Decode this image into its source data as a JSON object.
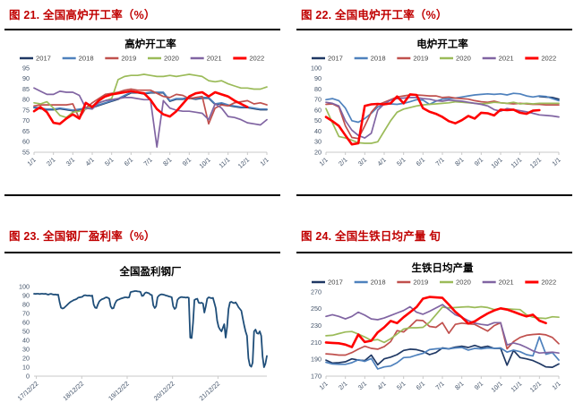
{
  "colors": {
    "caption": "#C00000",
    "rule": "#000000",
    "axis_text": "#44546A",
    "axis_line": "#C9C9C9",
    "legend_text": "#404040",
    "title_text": "#000000"
  },
  "chart_data": [
    {
      "id": "fig21",
      "caption": "图 21. 全国高炉开工率（%）",
      "title": "高炉开工率",
      "type": "line",
      "legend": true,
      "legend_position": "top",
      "grid": false,
      "ylim": [
        55,
        95
      ],
      "y_ticks": [
        55,
        60,
        65,
        70,
        75,
        80,
        85,
        90,
        95
      ],
      "x_labels": [
        "1/1",
        "2/1",
        "3/1",
        "4/1",
        "5/1",
        "6/1",
        "7/1",
        "8/1",
        "9/1",
        "10/1",
        "11/1",
        "12/1",
        "1/1"
      ],
      "series": [
        {
          "name": "2017",
          "color": "#1F3864",
          "width": 1.7,
          "values": [
            76.2,
            75.7,
            75.2,
            75.2,
            75.7,
            75.2,
            74.7,
            75.2,
            75.7,
            76.2,
            77.2,
            78.2,
            79.2,
            80.2,
            81.7,
            83.2,
            83.2,
            82.7,
            83.2,
            83.2,
            83.2,
            79.2,
            80.2,
            80.2,
            80.7,
            80.2,
            80.7,
            80.7,
            77.7,
            78.2,
            77.2,
            76.7,
            76.2,
            76.2,
            75.7,
            75.2,
            75.2
          ]
        },
        {
          "name": "2018",
          "color": "#4E81BD",
          "width": 1.7,
          "values": [
            76.5,
            76,
            75.5,
            75.5,
            76,
            75.5,
            75,
            75.5,
            76,
            76.5,
            77.5,
            78.5,
            79.5,
            80.5,
            82,
            83.5,
            83.5,
            83,
            83.5,
            83.5,
            83.5,
            79.5,
            80.5,
            80.5,
            81,
            80.5,
            81,
            81,
            78,
            78.5,
            77.5,
            77,
            76.5,
            76.5,
            76,
            75.5,
            75.5
          ]
        },
        {
          "name": "2019",
          "color": "#C0504D",
          "width": 1.7,
          "values": [
            77,
            77.5,
            77.5,
            77.5,
            77.5,
            77.5,
            78,
            71,
            76,
            78.5,
            80.5,
            82.5,
            83,
            83.5,
            84.5,
            85,
            84.5,
            84.5,
            84.5,
            83,
            81.5,
            81,
            82.5,
            82,
            80.5,
            81,
            81.5,
            68.5,
            76,
            77.5,
            77,
            78.5,
            79,
            79.5,
            78,
            78.5,
            77.5
          ]
        },
        {
          "name": "2020",
          "color": "#9BBB59",
          "width": 1.7,
          "values": [
            78.5,
            78,
            79,
            76,
            72.5,
            71.5,
            74,
            74.5,
            75.5,
            77,
            78.5,
            79.5,
            80.5,
            89.5,
            91,
            91.5,
            91.5,
            92,
            91.5,
            91,
            91,
            91.5,
            91,
            91.5,
            92,
            91.5,
            91,
            89,
            88.5,
            89,
            87.5,
            86.5,
            85.5,
            85.5,
            85,
            85,
            86
          ]
        },
        {
          "name": "2021",
          "color": "#8064A2",
          "width": 1.7,
          "values": [
            85.5,
            84,
            82.5,
            82.5,
            84,
            83.5,
            83.5,
            82,
            76,
            75.5,
            78.5,
            79.5,
            80,
            80.5,
            81,
            81,
            80.5,
            80,
            80,
            57.5,
            79.5,
            76,
            75,
            74.5,
            74.5,
            74,
            73.5,
            70.5,
            78,
            76,
            72,
            71.5,
            70.5,
            69,
            68.5,
            68,
            70.5
          ]
        },
        {
          "name": "2022",
          "color": "#FF0000",
          "width": 2.6,
          "values": [
            74.5,
            76.5,
            74,
            69,
            68.5,
            71,
            73,
            71,
            78.5,
            76.5,
            79.5,
            81.5,
            82.5,
            83,
            83.5,
            84,
            83.5,
            83,
            80,
            75.5,
            73,
            72,
            74.5,
            78,
            81.5,
            83,
            83.5,
            81.5,
            83.5,
            82.5,
            81.5,
            79.5,
            78,
            76.5,
            null,
            null,
            null
          ]
        }
      ]
    },
    {
      "id": "fig22",
      "caption": "图 22. 全国电炉开工率（%）",
      "title": "电炉开工率",
      "type": "line",
      "legend": true,
      "legend_position": "top",
      "grid": false,
      "ylim": [
        20,
        100
      ],
      "y_ticks": [
        20,
        30,
        40,
        50,
        60,
        70,
        80,
        90,
        100
      ],
      "x_labels": [
        "1/1",
        "2/1",
        "3/1",
        "4/1",
        "5/1",
        "6/1",
        "7/1",
        "8/1",
        "9/1",
        "10/1",
        "11/1",
        "12/1",
        "1/1"
      ],
      "series": [
        {
          "name": "2017",
          "color": "#1F3864",
          "width": 1.8,
          "values": [
            null,
            null,
            null,
            null,
            null,
            null,
            null,
            null,
            null,
            null,
            null,
            null,
            null,
            null,
            null,
            null,
            null,
            null,
            null,
            null,
            null,
            null,
            null,
            null,
            null,
            null,
            null,
            null,
            null,
            null,
            null,
            null,
            null,
            73,
            72.5,
            72,
            70.5
          ]
        },
        {
          "name": "2018",
          "color": "#4E81BD",
          "width": 1.7,
          "values": [
            70,
            71,
            69,
            62,
            50,
            48.5,
            52,
            57,
            63,
            65.5,
            66,
            65.5,
            66.5,
            68,
            70,
            69.5,
            65.5,
            68.5,
            70.5,
            71,
            71.5,
            72.5,
            73.5,
            74.5,
            75,
            75.5,
            75,
            75.5,
            74.5,
            76,
            75.5,
            73.5,
            72.5,
            73.5,
            73,
            71,
            69
          ]
        },
        {
          "name": "2019",
          "color": "#C0504D",
          "width": 1.7,
          "values": [
            65.5,
            66,
            63,
            45,
            34,
            33,
            45,
            58,
            65,
            67.5,
            70,
            72.5,
            73.5,
            74.5,
            74.5,
            74,
            73.5,
            73.5,
            72,
            72.5,
            71.5,
            71,
            70.5,
            69,
            68,
            67.5,
            68.5,
            67,
            66.5,
            66,
            66.5,
            66,
            65.5,
            65.5,
            65,
            65,
            65
          ]
        },
        {
          "name": "2020",
          "color": "#9BBB59",
          "width": 1.7,
          "values": [
            61.5,
            48,
            35,
            33.5,
            31.5,
            29,
            28.5,
            28.5,
            30,
            40,
            50,
            58,
            61,
            62.5,
            64,
            65,
            65.5,
            66,
            66.5,
            67,
            68,
            67.5,
            67,
            66.5,
            66,
            66.5,
            67.5,
            67,
            66.5,
            67.5,
            66,
            66.5,
            66,
            66.5,
            66.5,
            66.5,
            66.5
          ]
        },
        {
          "name": "2021",
          "color": "#8064A2",
          "width": 1.7,
          "values": [
            67.5,
            66.5,
            64,
            50,
            41,
            36,
            33.5,
            38,
            60,
            66,
            69.5,
            71,
            71.5,
            72,
            72,
            71,
            70.5,
            69,
            68.5,
            69.5,
            69,
            68.5,
            67.5,
            66.5,
            65.5,
            64,
            60.5,
            59,
            61.5,
            60.5,
            59.5,
            58.5,
            57,
            55.5,
            55,
            54.5,
            53.5
          ]
        },
        {
          "name": "2022",
          "color": "#FF0000",
          "width": 2.6,
          "values": [
            53.5,
            49.5,
            45,
            36,
            27.5,
            28.5,
            64,
            65.5,
            66,
            65.5,
            66.5,
            73,
            66.5,
            75,
            74.5,
            62,
            58.5,
            56.5,
            53.5,
            49.5,
            47.5,
            50.5,
            54.5,
            52,
            57.5,
            57,
            55,
            60.5,
            60,
            60.5,
            57.5,
            56.5,
            59.5,
            60,
            null,
            null,
            null
          ]
        }
      ]
    },
    {
      "id": "fig23",
      "caption": "图 23. 全国钢厂盈利率（%）",
      "title": "全国盈利钢厂",
      "type": "line",
      "legend": false,
      "grid": false,
      "ylim": [
        0,
        100
      ],
      "y_ticks": [
        0,
        10,
        20,
        30,
        40,
        50,
        60,
        70,
        80,
        90,
        100
      ],
      "x_ticks": [
        {
          "label": "17/12/22",
          "pos": 0.01
        },
        {
          "label": "18/12/22",
          "pos": 0.205
        },
        {
          "label": "19/12/22",
          "pos": 0.4
        },
        {
          "label": "20/12/22",
          "pos": 0.595
        },
        {
          "label": "21/12/22",
          "pos": 0.79
        }
      ],
      "series": [
        {
          "name": "全国盈利钢厂",
          "color": "#1F4E79",
          "width": 1.8,
          "values": [
            92,
            91.8,
            92,
            92,
            91.6,
            92,
            92,
            91.7,
            92,
            91.5,
            91,
            91.6,
            91.9,
            91.4,
            91,
            91.2,
            90.8,
            91,
            83,
            76.5,
            75.5,
            76,
            77.5,
            79,
            80.5,
            82,
            83.2,
            84,
            85,
            85.5,
            86.2,
            87.5,
            88,
            88.2,
            88.6,
            90,
            90.4,
            90,
            89.8,
            90,
            89.5,
            90,
            80,
            76.5,
            76,
            80,
            83.5,
            85,
            86,
            86.5,
            87.5,
            88,
            87.5,
            86.5,
            78,
            75.5,
            76,
            81,
            84,
            85.2,
            85.7,
            86.5,
            87,
            87.5,
            88,
            88,
            87.6,
            88,
            93.8,
            94.3,
            94.6,
            95,
            95,
            94.6,
            94.5,
            94,
            89.5,
            90,
            92.6,
            93.5,
            93,
            92.5,
            91,
            90.5,
            79,
            76,
            78,
            88,
            90,
            91,
            91.4,
            91,
            90.6,
            90,
            89.6,
            89,
            88.6,
            88,
            78,
            75,
            76.5,
            85,
            87,
            88,
            88.4,
            88,
            88,
            87.6,
            88,
            87.5,
            43,
            42.5,
            60,
            85,
            86,
            86.4,
            82,
            81.5,
            82,
            81,
            71,
            78,
            86.5,
            88,
            87.5,
            87,
            87.4,
            82,
            76,
            62,
            55,
            52,
            50,
            54,
            58,
            43,
            55,
            75,
            82.4,
            83,
            82,
            81.5,
            82.4,
            80,
            77,
            75,
            73,
            65,
            57,
            50,
            45,
            20,
            12,
            10.5,
            15,
            50,
            52,
            48,
            47.4,
            50,
            45,
            22,
            10,
            14,
            22.5
          ]
        }
      ]
    },
    {
      "id": "fig24",
      "caption": "图 24. 全国生铁日均产量 旬",
      "title": "生铁日均产量",
      "type": "line",
      "legend": true,
      "legend_position": "top",
      "grid": false,
      "ylim": [
        170,
        270
      ],
      "y_ticks": [
        170,
        190,
        210,
        230,
        250,
        270
      ],
      "x_labels": [
        "1/1",
        "2/1",
        "3/1",
        "4/1",
        "5/1",
        "6/1",
        "7/1",
        "8/1",
        "9/1",
        "10/1",
        "11/1",
        "12/1",
        "1/1"
      ],
      "series": [
        {
          "name": "2017",
          "color": "#1F3864",
          "width": 1.7,
          "values": [
            189,
            185.5,
            186,
            187,
            190.5,
            189,
            188.5,
            195,
            183.5,
            190.5,
            192.5,
            195.5,
            200.5,
            202,
            201.5,
            199.5,
            195.5,
            198,
            203.5,
            202.5,
            204.5,
            205.5,
            204,
            206.5,
            204,
            205.5,
            203,
            203,
            183,
            200.5,
            192,
            190.5,
            188.5,
            185,
            181,
            180.5,
            184.5
          ]
        },
        {
          "name": "2018",
          "color": "#4E81BD",
          "width": 1.7,
          "values": [
            186.5,
            184.5,
            184,
            184,
            186,
            189.5,
            187.5,
            191,
            178.5,
            181,
            182,
            186,
            192,
            192.5,
            195,
            197,
            201.5,
            202.5,
            203,
            202.5,
            203.5,
            204,
            201,
            203,
            202.5,
            203.5,
            203,
            203.5,
            198.5,
            201,
            199,
            195.5,
            194,
            216.5,
            196,
            198,
            189
          ]
        },
        {
          "name": "2019",
          "color": "#C0504D",
          "width": 1.7,
          "values": [
            196.5,
            196,
            195,
            195,
            198,
            202,
            205.5,
            203,
            202,
            205,
            211,
            224,
            222.5,
            229,
            236.5,
            236,
            229,
            228,
            233.5,
            221,
            231.5,
            233,
            232,
            231.5,
            227.5,
            223.5,
            230,
            233.5,
            202.5,
            211,
            216,
            218.5,
            219.5,
            220,
            219,
            216,
            208.5
          ]
        },
        {
          "name": "2020",
          "color": "#9BBB59",
          "width": 1.7,
          "values": [
            218,
            218.5,
            220.5,
            222.5,
            223,
            220,
            216.5,
            212.5,
            213.5,
            210,
            214.5,
            220,
            226,
            227.5,
            227.5,
            228,
            234,
            243,
            252,
            251,
            251.5,
            252,
            252.5,
            251.5,
            252.5,
            251.5,
            249,
            250.5,
            250,
            249.5,
            249,
            243,
            240,
            239,
            238.5,
            240.5,
            240
          ]
        },
        {
          "name": "2021",
          "color": "#8064A2",
          "width": 1.7,
          "values": [
            241,
            243,
            241,
            238,
            241,
            246,
            242.5,
            238,
            237,
            239,
            242,
            245,
            248,
            252.5,
            246,
            243.5,
            247,
            251,
            255,
            249,
            243,
            240,
            236,
            233,
            231.5,
            230.5,
            233.5,
            233.5,
            207,
            209.5,
            207.5,
            204,
            200,
            197.5,
            198,
            198.5,
            197.5
          ]
        },
        {
          "name": "2022",
          "color": "#FF0000",
          "width": 2.6,
          "values": [
            210,
            209.5,
            209,
            207.5,
            204.5,
            219.5,
            210.5,
            212,
            222,
            228,
            235.5,
            233,
            240,
            246,
            252,
            262,
            264,
            263.5,
            263,
            255,
            246.5,
            240,
            232.5,
            235,
            240,
            244.5,
            248,
            250.5,
            249,
            246.5,
            243.5,
            241,
            243,
            236,
            233,
            null,
            null
          ]
        }
      ]
    }
  ]
}
